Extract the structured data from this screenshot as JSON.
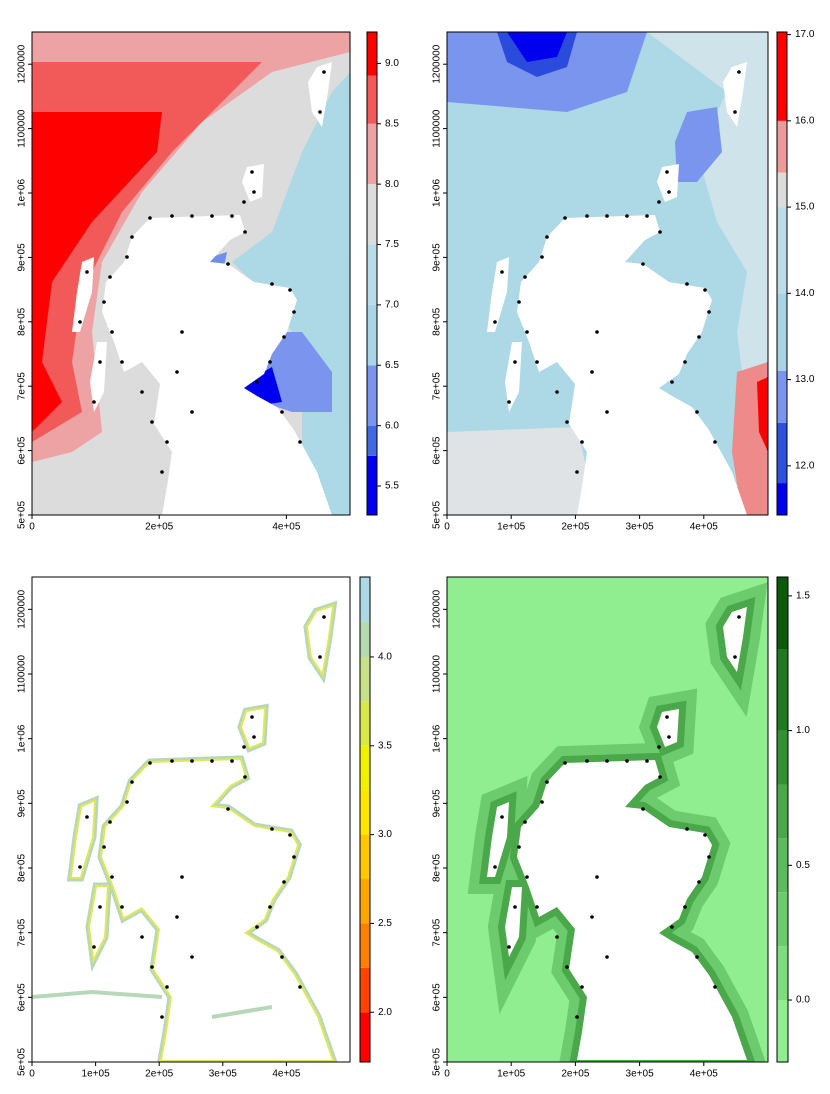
{
  "panels": [
    {
      "xlim": [
        0,
        500000
      ],
      "ylim": [
        500000,
        1250000
      ],
      "xticks": [
        0,
        {
          "value": 200000,
          "label": "2e+05"
        },
        {
          "value": 400000,
          "label": "4e+05"
        }
      ],
      "yticks": [
        {
          "value": 500000,
          "label": "5e+05"
        },
        {
          "value": 600000,
          "label": "6e+05"
        },
        {
          "value": 700000,
          "label": "7e+05"
        },
        {
          "value": 800000,
          "label": "8e+05"
        },
        {
          "value": 900000,
          "label": "9e+05"
        },
        {
          "value": 1000000,
          "label": "1e+06"
        },
        1100000,
        1200000
      ],
      "colorbar": {
        "levels": [
          5.26,
          5.75,
          6.0,
          6.5,
          7.0,
          7.5,
          8.0,
          8.5,
          8.9,
          9.26
        ],
        "colors": [
          "#0000ee",
          "#4169e1",
          "#7b95ee",
          "#a9d5e6",
          "#b8dce8",
          "#dcdcdc",
          "#eda3a3",
          "#f25a5a",
          "#ff0000"
        ],
        "ticks": [
          5.5,
          {
            "value": 6,
            "label": "6.0"
          },
          6.5,
          {
            "value": 7,
            "label": "7.0"
          },
          7.5,
          {
            "value": 8,
            "label": "8.0"
          },
          8.5,
          {
            "value": 9,
            "label": "9.0"
          }
        ]
      }
    },
    {
      "xlim": [
        0,
        500000
      ],
      "ylim": [
        500000,
        1250000
      ],
      "xticks": [
        0,
        {
          "value": 100000,
          "label": "1e+05"
        },
        {
          "value": 200000,
          "label": "2e+05"
        },
        {
          "value": 300000,
          "label": "3e+05"
        },
        {
          "value": 400000,
          "label": "4e+05"
        }
      ],
      "yticks": [
        {
          "value": 500000,
          "label": "5e+05"
        },
        {
          "value": 600000,
          "label": "6e+05"
        },
        {
          "value": 700000,
          "label": "7e+05"
        },
        {
          "value": 800000,
          "label": "8e+05"
        },
        {
          "value": 900000,
          "label": "9e+05"
        },
        {
          "value": 1000000,
          "label": "1e+06"
        },
        1100000,
        1200000
      ],
      "colorbar": {
        "levels": [
          11.43,
          11.8,
          12.5,
          13.1,
          14.0,
          15.0,
          15.4,
          16.0,
          17.03
        ],
        "colors": [
          "#0000ee",
          "#2d50e0",
          "#7b95ee",
          "#a7d3e4",
          "#bcdde8",
          "#dcdcdc",
          "#ee9a9a",
          "#ff0000"
        ],
        "ticks": [
          {
            "value": 12,
            "label": "12.0"
          },
          {
            "value": 13,
            "label": "13.0"
          },
          {
            "value": 14,
            "label": "14.0"
          },
          {
            "value": 15,
            "label": "15.0"
          },
          {
            "value": 16,
            "label": "16.0"
          },
          {
            "value": 17,
            "label": "17.0"
          }
        ]
      }
    },
    {
      "xlim": [
        0,
        500000
      ],
      "ylim": [
        500000,
        1250000
      ],
      "xticks": [
        0,
        {
          "value": 100000,
          "label": "1e+05"
        },
        {
          "value": 200000,
          "label": "2e+05"
        },
        {
          "value": 300000,
          "label": "3e+05"
        },
        {
          "value": 400000,
          "label": "4e+05"
        }
      ],
      "yticks": [
        {
          "value": 500000,
          "label": "5e+05"
        },
        {
          "value": 600000,
          "label": "6e+05"
        },
        {
          "value": 700000,
          "label": "7e+05"
        },
        {
          "value": 800000,
          "label": "8e+05"
        },
        {
          "value": 900000,
          "label": "9e+05"
        },
        {
          "value": 1000000,
          "label": "1e+06"
        },
        1100000,
        1200000
      ],
      "colorbar": {
        "levels": [
          1.72,
          2.0,
          2.25,
          2.5,
          2.75,
          3.0,
          3.25,
          3.5,
          3.75,
          4.0,
          4.2,
          4.45
        ],
        "colors": [
          "#ff0000",
          "#ff4500",
          "#ff7f00",
          "#ffa500",
          "#ffc800",
          "#ffe600",
          "#f0f000",
          "#d8e84a",
          "#c8e08a",
          "#b5d9b0",
          "#add8e6"
        ],
        "ticks": [
          {
            "value": 2,
            "label": "2.0"
          },
          2.5,
          {
            "value": 3,
            "label": "3.0"
          },
          3.5,
          {
            "value": 4,
            "label": "4.0"
          }
        ]
      }
    },
    {
      "xlim": [
        0,
        500000
      ],
      "ylim": [
        500000,
        1250000
      ],
      "xticks": [
        0,
        {
          "value": 100000,
          "label": "1e+05"
        },
        {
          "value": 200000,
          "label": "2e+05"
        },
        {
          "value": 300000,
          "label": "3e+05"
        },
        {
          "value": 400000,
          "label": "4e+05"
        }
      ],
      "yticks": [
        {
          "value": 500000,
          "label": "5e+05"
        },
        {
          "value": 600000,
          "label": "6e+05"
        },
        {
          "value": 700000,
          "label": "7e+05"
        },
        {
          "value": 800000,
          "label": "8e+05"
        },
        {
          "value": 900000,
          "label": "9e+05"
        },
        {
          "value": 1000000,
          "label": "1e+06"
        },
        1100000,
        1200000
      ],
      "colorbar": {
        "levels": [
          -0.23,
          0.0,
          0.2,
          0.4,
          0.6,
          0.8,
          1.0,
          1.3,
          1.57
        ],
        "colors": [
          "#90ee90",
          "#7ddc7d",
          "#6ccb6c",
          "#5cbb5c",
          "#4aa84a",
          "#339033",
          "#1f7a1f",
          "#0a5a0a"
        ],
        "ticks": [
          {
            "value": 0,
            "label": "0.0"
          },
          0.5,
          {
            "value": 1,
            "label": "1.0"
          },
          1.5
        ]
      }
    }
  ]
}
